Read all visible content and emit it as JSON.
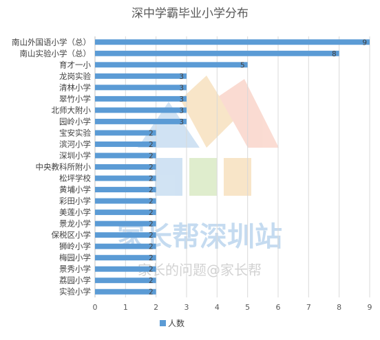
{
  "chart_data": {
    "type": "bar",
    "orientation": "horizontal",
    "title": "深中学霸毕业小学分布",
    "categories": [
      "南山外国语小学（总）",
      "南山实验小学（总）",
      "育才一小",
      "龙岗实验",
      "清林小学",
      "翠竹小学",
      "北师大附小",
      "园岭小学",
      "宝安实验",
      "滨河小学",
      "深圳小学",
      "中央教科所附小",
      "松坪学校",
      "黄埔小学",
      "彩田小学",
      "美莲小学",
      "景龙小学",
      "保税区小学",
      "狮岭小学",
      "梅园小学",
      "景秀小学",
      "荔园小学",
      "实验小学"
    ],
    "series": [
      {
        "name": "人数",
        "values": [
          9,
          8,
          5,
          3,
          3,
          3,
          3,
          3,
          2,
          2,
          2,
          2,
          2,
          2,
          2,
          2,
          2,
          2,
          2,
          2,
          2,
          2,
          2
        ]
      }
    ],
    "xlim": [
      0,
      9
    ],
    "x_ticks": [
      "0",
      "1",
      "2",
      "3",
      "4",
      "5",
      "6",
      "7",
      "8",
      "9"
    ],
    "grid": true,
    "legend_position": "bottom",
    "bar_color": "#5b9bd5",
    "watermark": {
      "main": "家长帮深圳站",
      "sub": "家长的问题@家长帮"
    }
  }
}
